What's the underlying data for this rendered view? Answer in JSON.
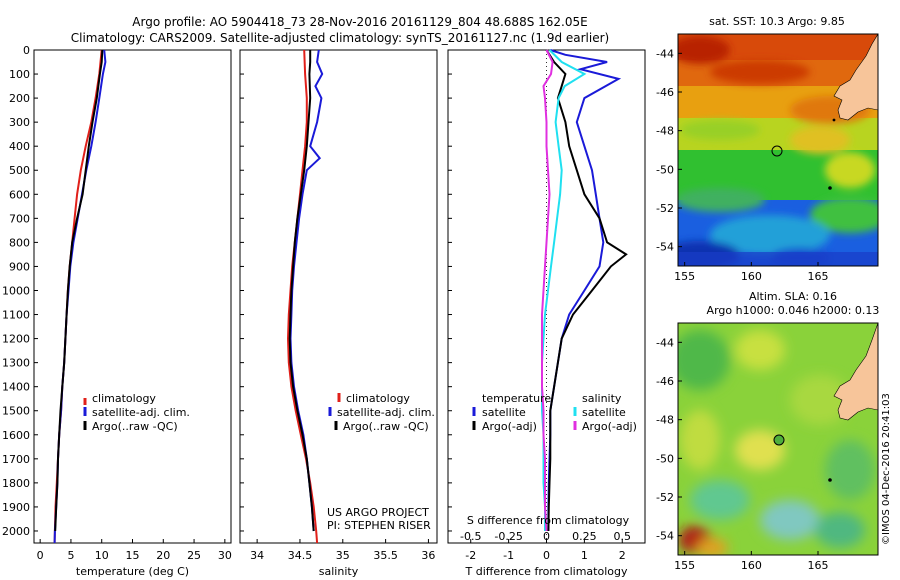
{
  "header": {
    "line1": "Argo profile: AO 5904418_73 28-Nov-2016 20161129_804 48.688S 162.05E",
    "line2": "Climatology: CARS2009. Satellite-adjusted climatology: synTS_20161127.nc (1.9d earlier)"
  },
  "credits": {
    "project": "US ARGO PROJECT",
    "pi": "PI: STEPHEN RISER",
    "imos": "©IMOS 04-Dec-2016 20:41:03"
  },
  "colors": {
    "climatology": "#e0201a",
    "satellite": "#1a1ad8",
    "argo": "#000000",
    "salinity_satellite": "#20e0f0",
    "salinity_argo": "#e030e0"
  },
  "chart_data": [
    {
      "type": "line",
      "xlabel": "temperature (deg C)",
      "ylabel": "",
      "xlim": [
        -1,
        31
      ],
      "ylim": [
        2050,
        0
      ],
      "xticks": [
        "0",
        "5",
        "10",
        "15",
        "20",
        "25",
        "30"
      ],
      "yticks": [
        "0",
        "100",
        "200",
        "300",
        "400",
        "500",
        "600",
        "700",
        "800",
        "900",
        "1000",
        "1100",
        "1200",
        "1300",
        "1400",
        "1500",
        "1600",
        "1700",
        "1800",
        "1900",
        "2000"
      ],
      "legend": [
        "climatology",
        "satellite-adj. clim.",
        "Argo(..raw -QC)"
      ],
      "series": [
        {
          "name": "climatology",
          "depth": [
            0,
            100,
            200,
            300,
            400,
            500,
            600,
            700,
            800,
            900,
            1000,
            1100,
            1200,
            1300,
            1400,
            1500,
            1600,
            1700,
            1800,
            1900,
            2000,
            2050
          ],
          "values": [
            10.0,
            9.6,
            9.0,
            8.3,
            7.4,
            6.6,
            6.0,
            5.6,
            5.2,
            4.8,
            4.5,
            4.3,
            4.1,
            3.9,
            3.6,
            3.4,
            3.1,
            2.9,
            2.7,
            2.5,
            2.4,
            2.35
          ]
        },
        {
          "name": "satellite-adj. clim.",
          "depth": [
            0,
            50,
            100,
            200,
            300,
            400,
            500,
            600,
            700,
            800,
            900,
            1000,
            1100,
            1200,
            1300,
            1400,
            1500,
            1600,
            1700,
            1800,
            1900,
            2000,
            2050
          ],
          "values": [
            10.4,
            10.6,
            10.2,
            9.6,
            9.0,
            8.3,
            7.5,
            6.8,
            6.1,
            5.4,
            4.9,
            4.6,
            4.3,
            4.1,
            3.9,
            3.6,
            3.4,
            3.1,
            2.9,
            2.8,
            2.6,
            2.4,
            2.35
          ]
        },
        {
          "name": "Argo(..raw -QC)",
          "depth": [
            0,
            50,
            100,
            200,
            300,
            400,
            500,
            600,
            700,
            800,
            900,
            1000,
            1100,
            1200,
            1300,
            1400,
            1500,
            1600,
            1700,
            1800,
            1900,
            2000
          ],
          "values": [
            10.1,
            10.0,
            9.7,
            9.2,
            8.5,
            7.9,
            7.4,
            6.9,
            6.0,
            5.2,
            4.8,
            4.5,
            4.3,
            4.1,
            3.9,
            3.6,
            3.3,
            3.1,
            2.9,
            2.8,
            2.6,
            2.45
          ]
        }
      ]
    },
    {
      "type": "line",
      "xlabel": "salinity",
      "xlim": [
        33.8,
        36.1
      ],
      "ylim": [
        2050,
        0
      ],
      "xticks": [
        "34",
        "34.5",
        "35",
        "35.5",
        "36"
      ],
      "legend": [
        "climatology",
        "satellite-adj. clim.",
        "Argo(..raw -QC)"
      ],
      "series": [
        {
          "name": "climatology",
          "depth": [
            0,
            100,
            200,
            300,
            400,
            500,
            600,
            700,
            800,
            900,
            1000,
            1100,
            1200,
            1300,
            1400,
            1500,
            1600,
            1700,
            1800,
            1900,
            2000,
            2050
          ],
          "values": [
            34.55,
            34.56,
            34.58,
            34.58,
            34.56,
            34.53,
            34.5,
            34.47,
            34.44,
            34.41,
            34.39,
            34.37,
            34.36,
            34.37,
            34.4,
            34.45,
            34.51,
            34.57,
            34.62,
            34.66,
            34.69,
            34.7
          ]
        },
        {
          "name": "satellite-adj. clim.",
          "depth": [
            0,
            50,
            100,
            150,
            200,
            300,
            400,
            450,
            500,
            600,
            700,
            800,
            900,
            1000,
            1100,
            1200,
            1300,
            1400,
            1500,
            1600,
            1700,
            1800,
            1900,
            2000
          ],
          "values": [
            34.72,
            34.7,
            34.76,
            34.68,
            34.75,
            34.7,
            34.62,
            34.73,
            34.58,
            34.53,
            34.49,
            34.46,
            34.43,
            34.41,
            34.4,
            34.39,
            34.4,
            34.43,
            34.48,
            34.54,
            34.58,
            34.61,
            34.64,
            34.66
          ]
        },
        {
          "name": "Argo(..raw -QC)",
          "depth": [
            0,
            50,
            100,
            200,
            300,
            400,
            500,
            600,
            700,
            800,
            900,
            1000,
            1100,
            1200,
            1300,
            1400,
            1500,
            1600,
            1700,
            1800,
            1900,
            2000
          ],
          "values": [
            34.62,
            34.62,
            34.61,
            34.62,
            34.6,
            34.58,
            34.55,
            34.51,
            34.47,
            34.44,
            34.42,
            34.4,
            34.39,
            34.38,
            34.39,
            34.42,
            34.47,
            34.53,
            34.58,
            34.61,
            34.64,
            34.66
          ]
        }
      ]
    },
    {
      "type": "line",
      "xlabel": "T difference from climatology",
      "top_xlabel": "S difference from climatology",
      "xlim": [
        -2.6,
        2.6
      ],
      "ylim": [
        2050,
        0
      ],
      "xticks": [
        "-2",
        "-1",
        "0",
        "1",
        "2"
      ],
      "top_xticks": [
        "-0.5",
        "-0.25",
        "0",
        "0.25",
        "0.5"
      ],
      "legend": [
        "temperature",
        "satellite",
        "Argo(-adj)",
        "salinity",
        "satellite",
        "Argo(-adj)"
      ],
      "series": [
        {
          "name": "temperature satellite",
          "depth": [
            0,
            20,
            50,
            80,
            120,
            200,
            300,
            400,
            500,
            600,
            700,
            800,
            900,
            1000,
            1100,
            1200,
            1300,
            1400,
            1500,
            1600,
            1700,
            1800,
            1900,
            2000
          ],
          "values": [
            0.1,
            0.5,
            1.6,
            0.9,
            1.9,
            1.0,
            0.8,
            1.0,
            1.2,
            1.3,
            1.4,
            1.5,
            1.4,
            1.0,
            0.6,
            0.4,
            0.3,
            0.2,
            0.1,
            0.1,
            0.08,
            0.06,
            0.05,
            0.05
          ]
        },
        {
          "name": "temperature Argo(-adj)",
          "depth": [
            0,
            50,
            100,
            150,
            200,
            300,
            400,
            500,
            600,
            700,
            800,
            850,
            900,
            1000,
            1100,
            1200,
            1300,
            1400,
            1500,
            1600,
            1700,
            1800,
            1900,
            2000
          ],
          "values": [
            0.0,
            0.2,
            0.5,
            0.4,
            0.3,
            0.5,
            0.6,
            0.8,
            1.0,
            1.4,
            1.6,
            2.1,
            1.7,
            1.2,
            0.7,
            0.4,
            0.3,
            0.2,
            0.1,
            0.1,
            0.1,
            0.08,
            0.06,
            0.05
          ]
        },
        {
          "name": "salinity satellite",
          "depth": [
            0,
            50,
            100,
            150,
            200,
            300,
            400,
            500,
            600,
            700,
            800,
            900,
            1000,
            1100,
            1200,
            1300,
            1400,
            1500,
            1600,
            1700,
            1800,
            1900,
            2000
          ],
          "values": [
            0.02,
            0.1,
            0.25,
            0.12,
            0.08,
            0.06,
            0.08,
            0.1,
            0.09,
            0.07,
            0.05,
            0.03,
            0.01,
            -0.01,
            -0.02,
            -0.03,
            -0.03,
            -0.03,
            -0.02,
            -0.02,
            -0.02,
            -0.01,
            -0.01
          ]
        },
        {
          "name": "salinity Argo(-adj)",
          "depth": [
            0,
            50,
            100,
            150,
            200,
            300,
            400,
            500,
            600,
            700,
            800,
            900,
            1000,
            1100,
            1200,
            1300,
            1400,
            1500,
            1600,
            1700,
            1800,
            1900,
            2000
          ],
          "values": [
            0.0,
            0.04,
            0.03,
            -0.02,
            -0.01,
            0.0,
            0.0,
            0.01,
            0.02,
            0.01,
            0.0,
            -0.01,
            -0.02,
            -0.03,
            -0.03,
            -0.03,
            -0.03,
            -0.02,
            -0.02,
            -0.01,
            -0.01,
            -0.01,
            0.0
          ]
        }
      ]
    },
    {
      "type": "heatmap",
      "title": "sat. SST: 10.3 Argo: 9.85",
      "xticks": [
        "155",
        "160",
        "165"
      ],
      "yticks": [
        "-44",
        "-46",
        "-48",
        "-50",
        "-52",
        "-54"
      ],
      "xlim": [
        154.5,
        169.5
      ],
      "ylim": [
        -55,
        -43
      ]
    },
    {
      "type": "heatmap",
      "title": "Altim. SLA: 0.16",
      "subtitle": "Argo h1000: 0.046 h2000: 0.13",
      "xticks": [
        "155",
        "160",
        "165"
      ],
      "yticks": [
        "-44",
        "-46",
        "-48",
        "-50",
        "-52",
        "-54"
      ],
      "xlim": [
        154.5,
        169.5
      ],
      "ylim": [
        -55,
        -43
      ]
    }
  ]
}
